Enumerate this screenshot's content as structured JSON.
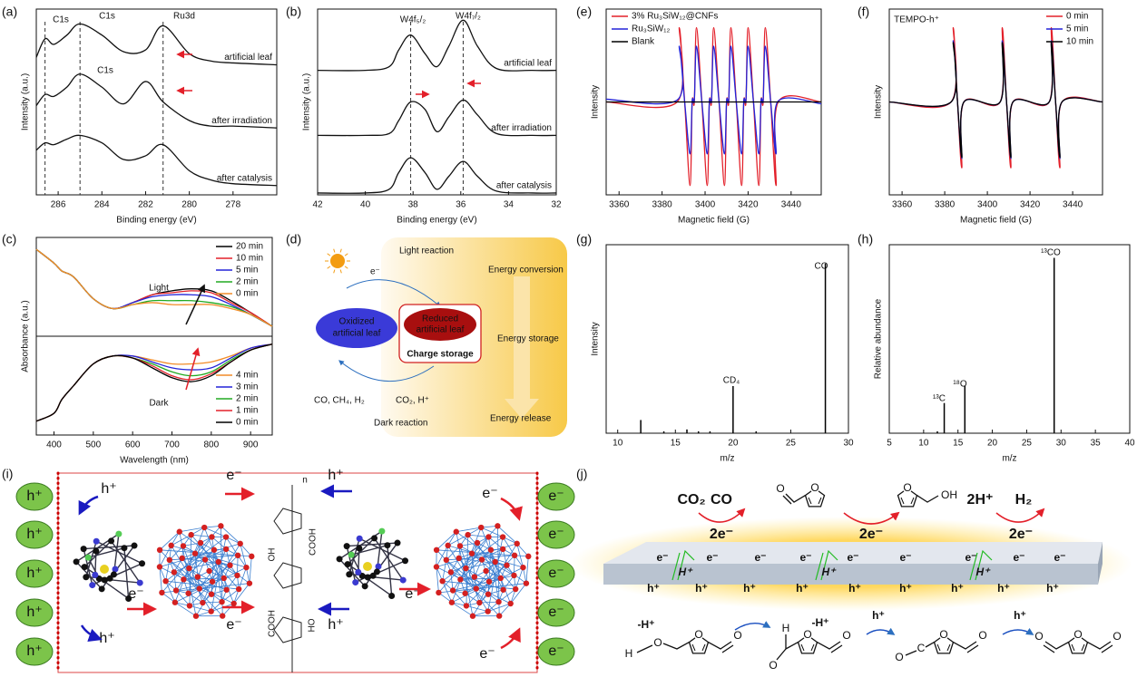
{
  "panel_labels": [
    "(a)",
    "(b)",
    "(c)",
    "(d)",
    "(e)",
    "(f)",
    "(g)",
    "(h)",
    "(i)",
    "(j)"
  ],
  "chart_data": [
    {
      "type": "line",
      "xlabel": "Binding energy (eV)",
      "ylabel": "Intensity (a.u.)",
      "xlim": [
        287,
        276
      ],
      "xticks": [
        286,
        284,
        282,
        280,
        278
      ],
      "ylim": [
        0,
        100
      ],
      "legend": "inline",
      "annotations": [
        "C1s",
        "C1s",
        "Ru3d",
        "C1s"
      ],
      "ref_lines": [
        286.6,
        285,
        281.2
      ],
      "x": [
        287,
        286.6,
        286.2,
        285.6,
        285,
        284,
        283,
        282,
        281.2,
        280,
        279,
        278,
        276
      ],
      "series": [
        {
          "name": "artificial leaf",
          "color": "#111111",
          "values": [
            74,
            84,
            81,
            86,
            92,
            86,
            77,
            78,
            91,
            76,
            72,
            71,
            70
          ]
        },
        {
          "name": "after irradiation",
          "color": "#111111",
          "values": [
            48,
            54,
            53,
            58,
            65,
            58,
            49,
            61,
            50,
            40,
            37,
            37,
            36
          ]
        },
        {
          "name": "after catalysis",
          "color": "#111111",
          "values": [
            24,
            28,
            27,
            30,
            32,
            28,
            19,
            21,
            27,
            13,
            8,
            6,
            5
          ]
        }
      ]
    },
    {
      "type": "line",
      "xlabel": "Binding energy (eV)",
      "ylabel": "Intensity (a.u.)",
      "xlim": [
        42,
        32
      ],
      "xticks": [
        42,
        40,
        38,
        36,
        34,
        32
      ],
      "ylim": [
        0,
        100
      ],
      "legend": "inline",
      "annotations": [
        "W4f₅/₂",
        "W4f₇/₂"
      ],
      "ref_lines": [
        38.1,
        35.9
      ],
      "x": [
        42,
        40,
        39,
        38.6,
        38.1,
        37.5,
        37,
        36.5,
        35.9,
        35.3,
        34.5,
        33,
        32
      ],
      "series": [
        {
          "name": "artificial leaf",
          "color": "#111111",
          "values": [
            67,
            67,
            69,
            78,
            86,
            76,
            69,
            80,
            94,
            80,
            68,
            67,
            67
          ]
        },
        {
          "name": "after irradiation",
          "color": "#111111",
          "values": [
            32,
            32,
            33,
            40,
            50,
            46,
            34,
            42,
            51,
            43,
            33,
            32,
            32
          ]
        },
        {
          "name": "after catalysis",
          "color": "#111111",
          "values": [
            1,
            1,
            3,
            12,
            20,
            12,
            3,
            10,
            18,
            10,
            2,
            1,
            1
          ]
        }
      ]
    },
    {
      "type": "line",
      "xlabel": "Wavelength (nm)",
      "ylabel": "Absorbance (a.u.)",
      "xlim": [
        355,
        955
      ],
      "xticks": [
        400,
        500,
        600,
        700,
        800,
        900
      ],
      "ylim": [
        0,
        100
      ],
      "legend": "right",
      "annotations": [
        "Light",
        "Dark"
      ],
      "x": [
        355,
        400,
        420,
        450,
        500,
        550,
        600,
        650,
        700,
        750,
        800,
        850,
        900,
        955
      ],
      "series": [
        {
          "name": "20 min",
          "color": "#000000",
          "values": [
            94,
            87,
            83,
            80,
            69,
            64,
            67,
            71,
            73,
            74,
            73,
            68,
            62,
            55
          ]
        },
        {
          "name": "10 min",
          "color": "#e3202a",
          "values": [
            94,
            87,
            83,
            80,
            69,
            64,
            67,
            71,
            72,
            73,
            72,
            67,
            62,
            55
          ]
        },
        {
          "name": "5 min",
          "color": "#2323d8",
          "values": [
            94,
            87,
            83,
            80,
            69,
            64,
            67,
            70,
            71,
            71,
            70,
            66,
            61,
            55
          ]
        },
        {
          "name": "2 min",
          "color": "#22aa22",
          "values": [
            94,
            87,
            83,
            80,
            69,
            64,
            66,
            68,
            68,
            68,
            67,
            65,
            61,
            55
          ]
        },
        {
          "name": "0 min",
          "color": "#f28c28",
          "values": [
            94,
            87,
            83,
            80,
            69,
            64,
            66,
            67,
            66,
            66,
            66,
            64,
            61,
            55
          ]
        },
        {
          "name": "4 min",
          "color": "#f28c28",
          "values": [
            7,
            11,
            18,
            25,
            36,
            40,
            40,
            38,
            36,
            36,
            37,
            40,
            44,
            46
          ]
        },
        {
          "name": "3 min",
          "color": "#2323d8",
          "values": [
            7,
            11,
            18,
            25,
            36,
            40,
            40,
            37,
            34,
            33,
            34,
            39,
            44,
            46
          ]
        },
        {
          "name": "2 min",
          "color": "#22aa22",
          "values": [
            7,
            11,
            18,
            25,
            36,
            40,
            39,
            36,
            32,
            30,
            32,
            38,
            43,
            46
          ]
        },
        {
          "name": "1 min",
          "color": "#e3202a",
          "values": [
            7,
            11,
            18,
            25,
            36,
            40,
            39,
            35,
            30,
            28,
            31,
            37,
            43,
            46
          ]
        },
        {
          "name": "0 min",
          "color": "#000000",
          "values": [
            7,
            11,
            18,
            25,
            36,
            40,
            39,
            34,
            29,
            27,
            30,
            37,
            43,
            46
          ]
        }
      ]
    },
    {
      "type": "line",
      "xlabel": "Magnetic field (G)",
      "ylabel": "Intensity",
      "xlim": [
        3354,
        3454
      ],
      "xticks": [
        3360,
        3380,
        3400,
        3420,
        3440
      ],
      "ylim": [
        -100,
        100
      ],
      "legend": "upper left",
      "x": [
        3354,
        3387,
        3388,
        3390.5,
        3393,
        3394,
        3395,
        3396,
        3398.5,
        3401,
        3402,
        3403,
        3404,
        3406.5,
        3409,
        3410,
        3411,
        3412,
        3414.5,
        3417,
        3418,
        3419,
        3420,
        3422.5,
        3425,
        3426,
        3427,
        3428,
        3430.5,
        3433,
        3434,
        3454
      ],
      "series": [
        {
          "name": "3% Ru₃SiW₁₂@CNFs",
          "color": "#e3202a",
          "values": [
            0,
            0,
            80,
            0,
            -90,
            0,
            0,
            80,
            0,
            -90,
            0,
            0,
            80,
            0,
            -90,
            0,
            0,
            80,
            0,
            -90,
            0,
            0,
            80,
            0,
            -90,
            0,
            0,
            80,
            0,
            -90,
            0,
            0
          ]
        },
        {
          "name": "Ru₃SiW₁₂",
          "color": "#2323d8",
          "values": [
            3,
            2,
            60,
            0,
            -56,
            1,
            2,
            60,
            0,
            -56,
            1,
            2,
            60,
            0,
            -56,
            1,
            2,
            60,
            0,
            -56,
            1,
            2,
            60,
            0,
            -56,
            1,
            2,
            60,
            0,
            -56,
            1,
            -2
          ]
        },
        {
          "name": "Blank",
          "color": "#000000",
          "values": [
            0,
            0,
            0,
            0,
            0,
            0,
            0,
            0,
            0,
            0,
            0,
            0,
            0,
            0,
            0,
            0,
            0,
            0,
            0,
            0,
            0,
            0,
            0,
            0,
            0,
            0,
            0,
            0,
            0,
            0,
            0,
            0
          ]
        }
      ]
    },
    {
      "type": "line",
      "xlabel": "Magnetic field (G)",
      "ylabel": "Intensity",
      "xlim": [
        3354,
        3454
      ],
      "xticks": [
        3360,
        3380,
        3400,
        3420,
        3440
      ],
      "ylim": [
        -100,
        100
      ],
      "legend": "upper right",
      "annotations": [
        "TEMPO-h⁺"
      ],
      "x": [
        3354,
        3383,
        3384,
        3386,
        3388,
        3389,
        3406,
        3407,
        3409,
        3411,
        3412,
        3429,
        3430,
        3432,
        3434,
        3435,
        3454
      ],
      "series": [
        {
          "name": "0 min",
          "color": "#e3202a",
          "values": [
            0,
            0,
            80,
            0,
            -71,
            0,
            0,
            80,
            0,
            -71,
            0,
            0,
            80,
            0,
            -71,
            0,
            0
          ]
        },
        {
          "name": "5 min",
          "color": "#2323d8",
          "values": [
            0,
            0,
            66,
            0,
            -61,
            0,
            0,
            66,
            0,
            -61,
            0,
            0,
            66,
            0,
            -61,
            0,
            0
          ]
        },
        {
          "name": "10 min",
          "color": "#000000",
          "values": [
            0,
            0,
            64,
            0,
            -60,
            0,
            0,
            64,
            0,
            -60,
            0,
            0,
            64,
            0,
            -60,
            0,
            0
          ]
        }
      ]
    },
    {
      "type": "stem",
      "xlabel": "m/z",
      "ylabel": "Intensity",
      "xlim": [
        9,
        30
      ],
      "xticks": [
        10,
        15,
        20,
        25,
        30
      ],
      "ylim": [
        0,
        100
      ],
      "color": "#000000",
      "annotations": [
        "CO",
        "CD₄"
      ],
      "x": [
        12,
        14,
        16,
        17,
        18,
        20,
        22,
        28
      ],
      "values": [
        7,
        1,
        2,
        1,
        1,
        25,
        1,
        90
      ]
    },
    {
      "type": "stem",
      "xlabel": "m/z",
      "ylabel": "Relative abundance",
      "xlim": [
        5,
        40
      ],
      "xticks": [
        5,
        10,
        15,
        20,
        25,
        30,
        35,
        40
      ],
      "ylim": [
        0,
        100
      ],
      "color": "#000000",
      "annotations": [
        "¹³CO",
        "¹³C",
        "¹⁸O"
      ],
      "x": [
        12,
        13,
        16,
        29
      ],
      "values": [
        1,
        16,
        25,
        93
      ]
    }
  ],
  "diagram_d": {
    "light_reaction": "Light reaction",
    "electron": "e⁻",
    "oxidized": [
      "Oxidized",
      "artificial leaf"
    ],
    "reduced": [
      "Reduced",
      "artificial leaf"
    ],
    "charge_storage": "Charge storage",
    "products": "CO, CH₄, H₂",
    "reactants": "CO₂, H⁺",
    "dark_reaction": "Dark reaction",
    "stages": [
      "Energy conversion",
      "Energy storage",
      "Energy release"
    ]
  },
  "diagram_i": {
    "left_holes": [
      "h⁺",
      "h⁺",
      "h⁺",
      "h⁺",
      "h⁺"
    ],
    "right_electrons": [
      "e⁻",
      "e⁻",
      "e⁻",
      "e⁻",
      "e⁻"
    ],
    "labels": [
      "h⁺",
      "h⁺",
      "e⁻",
      "e⁻",
      "e⁻",
      "h⁺",
      "h⁺",
      "e⁻",
      "e⁻",
      "e⁻"
    ],
    "groups": [
      "COOH",
      "COOH",
      "OH",
      "HO",
      "n"
    ]
  },
  "diagram_j": {
    "top": [
      "CO₂",
      "CO",
      "2e⁻",
      "2e⁻",
      "2H⁺",
      "H₂",
      "2e⁻"
    ],
    "surface_electrons": [
      "e⁻",
      "e⁻",
      "e⁻",
      "e⁻",
      "e⁻",
      "e⁻",
      "e⁻",
      "e⁻",
      "e⁻"
    ],
    "surface_holes": [
      "h⁺",
      "h⁺",
      "h⁺",
      "h⁺",
      "h⁺",
      "h⁺",
      "h⁺",
      "h⁺",
      "h⁺"
    ],
    "surface_protons": [
      "H⁺",
      "H⁺",
      "H⁺"
    ],
    "bottom": [
      "-H⁺",
      "-H⁺",
      "h⁺",
      "h⁺"
    ],
    "atoms": [
      "O",
      "O",
      "O",
      "O",
      "O",
      "O",
      "O",
      "O",
      "O",
      "O",
      "O",
      "O",
      "OH",
      "H",
      "O",
      "H",
      "O",
      "O",
      "C"
    ]
  }
}
